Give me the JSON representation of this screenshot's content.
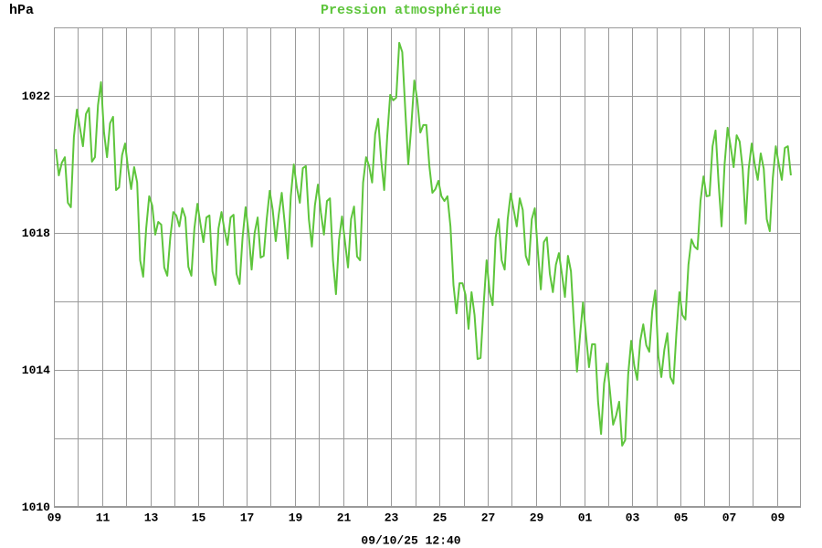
{
  "chart_data": {
    "type": "line",
    "title": "Pression atmosphérique",
    "y_label": "hPa",
    "footer": "09/10/25 12:40",
    "ylim": [
      1010,
      1024
    ],
    "yticks": [
      1010,
      1014,
      1018,
      1022
    ],
    "y_minor_ticks": [
      1012,
      1016,
      1020,
      1024
    ],
    "xlim": [
      0,
      31
    ],
    "xticks": [
      {
        "value": 0,
        "label": "09"
      },
      {
        "value": 2,
        "label": "11"
      },
      {
        "value": 4,
        "label": "13"
      },
      {
        "value": 6,
        "label": "15"
      },
      {
        "value": 8,
        "label": "17"
      },
      {
        "value": 10,
        "label": "19"
      },
      {
        "value": 12,
        "label": "21"
      },
      {
        "value": 14,
        "label": "23"
      },
      {
        "value": 16,
        "label": "25"
      },
      {
        "value": 18,
        "label": "27"
      },
      {
        "value": 20,
        "label": "29"
      },
      {
        "value": 22,
        "label": "01"
      },
      {
        "value": 24,
        "label": "03"
      },
      {
        "value": 26,
        "label": "05"
      },
      {
        "value": 28,
        "label": "07"
      },
      {
        "value": 30,
        "label": "09"
      }
    ],
    "x_minor_ticks": [
      1,
      3,
      5,
      7,
      9,
      11,
      13,
      15,
      17,
      19,
      21,
      23,
      25,
      27,
      29
    ],
    "grid": true,
    "x": [
      0.08,
      0.205,
      0.33,
      0.455,
      0.58,
      0.705,
      0.83,
      0.955,
      1.08,
      1.205,
      1.33,
      1.455,
      1.58,
      1.705,
      1.83,
      1.955,
      2.08,
      2.205,
      2.33,
      2.455,
      2.58,
      2.705,
      2.83,
      2.955,
      3.08,
      3.205,
      3.33,
      3.455,
      3.58,
      3.705,
      3.83,
      3.955,
      4.08,
      4.205,
      4.33,
      4.455,
      4.58,
      4.705,
      4.83,
      4.955,
      5.08,
      5.205,
      5.33,
      5.455,
      5.58,
      5.705,
      5.83,
      5.955,
      6.08,
      6.205,
      6.33,
      6.455,
      6.58,
      6.705,
      6.83,
      6.955,
      7.08,
      7.205,
      7.33,
      7.455,
      7.58,
      7.705,
      7.83,
      7.955,
      8.08,
      8.205,
      8.33,
      8.455,
      8.58,
      8.705,
      8.83,
      8.955,
      9.08,
      9.205,
      9.33,
      9.455,
      9.58,
      9.705,
      9.83,
      9.955,
      10.08,
      10.205,
      10.33,
      10.455,
      10.58,
      10.705,
      10.83,
      10.955,
      11.08,
      11.205,
      11.33,
      11.455,
      11.58,
      11.705,
      11.83,
      11.955,
      12.08,
      12.205,
      12.33,
      12.455,
      12.58,
      12.705,
      12.83,
      12.955,
      13.08,
      13.205,
      13.33,
      13.455,
      13.58,
      13.705,
      13.83,
      13.955,
      14.08,
      14.205,
      14.33,
      14.455,
      14.58,
      14.705,
      14.83,
      14.955,
      15.08,
      15.205,
      15.33,
      15.455,
      15.58,
      15.705,
      15.83,
      15.955,
      16.08,
      16.205,
      16.33,
      16.455,
      16.58,
      16.705,
      16.83,
      16.955,
      17.08,
      17.205,
      17.33,
      17.455,
      17.58,
      17.705,
      17.83,
      17.955,
      18.08,
      18.205,
      18.33,
      18.455,
      18.58,
      18.705,
      18.83,
      18.955,
      19.08,
      19.205,
      19.33,
      19.455,
      19.58,
      19.705,
      19.83,
      19.955,
      20.08,
      20.205,
      20.33,
      20.455,
      20.58,
      20.705,
      20.83,
      20.955,
      21.08,
      21.205,
      21.33,
      21.455,
      21.58,
      21.705,
      21.83,
      21.955,
      22.08,
      22.205,
      22.33,
      22.455,
      22.58,
      22.705,
      22.83,
      22.955,
      23.08,
      23.205,
      23.33,
      23.455,
      23.58,
      23.705,
      23.83,
      23.955,
      24.08,
      24.205,
      24.33,
      24.455,
      24.58,
      24.705,
      24.83,
      24.955,
      25.08,
      25.205,
      25.33,
      25.455,
      25.58,
      25.705,
      25.83,
      25.955,
      26.08,
      26.205,
      26.33,
      26.455,
      26.58,
      26.705,
      26.83,
      26.955,
      27.08,
      27.205,
      27.33,
      27.455,
      27.58,
      27.705,
      27.83,
      27.955,
      28.08,
      28.205,
      28.33,
      28.455,
      28.58,
      28.705,
      28.83,
      28.955,
      29.08,
      29.205,
      29.33,
      29.455,
      29.58,
      29.705,
      29.83,
      29.955,
      30.08,
      30.205,
      30.33,
      30.455,
      30.58
    ],
    "series": [
      {
        "color": "#5ec53c",
        "values": [
          1020.45,
          1019.68,
          1020.05,
          1020.21,
          1018.88,
          1018.75,
          1020.8,
          1021.6,
          1021.07,
          1020.53,
          1021.47,
          1021.65,
          1020.08,
          1020.21,
          1021.73,
          1022.4,
          1020.93,
          1020.21,
          1021.2,
          1021.39,
          1019.25,
          1019.33,
          1020.27,
          1020.61,
          1019.87,
          1019.28,
          1019.92,
          1019.47,
          1017.2,
          1016.72,
          1018.13,
          1019.07,
          1018.8,
          1017.95,
          1018.32,
          1018.24,
          1016.99,
          1016.75,
          1017.87,
          1018.61,
          1018.51,
          1018.19,
          1018.72,
          1018.45,
          1017.01,
          1016.75,
          1018.13,
          1018.85,
          1018.27,
          1017.73,
          1018.45,
          1018.51,
          1016.88,
          1016.48,
          1018.13,
          1018.61,
          1018.08,
          1017.65,
          1018.45,
          1018.53,
          1016.8,
          1016.51,
          1017.87,
          1018.75,
          1018.0,
          1016.93,
          1018.0,
          1018.45,
          1017.28,
          1017.33,
          1018.4,
          1019.23,
          1018.67,
          1017.76,
          1018.53,
          1019.17,
          1018.27,
          1017.25,
          1019.07,
          1020.0,
          1019.33,
          1018.88,
          1019.89,
          1019.95,
          1018.4,
          1017.6,
          1018.8,
          1019.41,
          1018.59,
          1017.95,
          1018.93,
          1019.01,
          1017.2,
          1016.21,
          1017.79,
          1018.48,
          1017.73,
          1016.99,
          1018.4,
          1018.77,
          1017.31,
          1017.2,
          1019.47,
          1020.21,
          1019.95,
          1019.47,
          1020.88,
          1021.33,
          1020.13,
          1019.25,
          1020.8,
          1022.03,
          1021.87,
          1021.95,
          1023.55,
          1023.28,
          1021.6,
          1020.0,
          1021.12,
          1022.45,
          1021.87,
          1020.93,
          1021.15,
          1021.15,
          1019.95,
          1019.17,
          1019.28,
          1019.52,
          1019.07,
          1018.93,
          1019.07,
          1018.19,
          1016.48,
          1015.65,
          1016.53,
          1016.53,
          1016.19,
          1015.2,
          1016.27,
          1015.6,
          1014.32,
          1014.35,
          1015.87,
          1017.2,
          1016.27,
          1015.89,
          1017.87,
          1018.4,
          1017.2,
          1016.93,
          1018.4,
          1019.15,
          1018.67,
          1018.19,
          1019.01,
          1018.67,
          1017.33,
          1017.07,
          1018.4,
          1018.72,
          1017.47,
          1016.35,
          1017.73,
          1017.87,
          1016.8,
          1016.27,
          1017.07,
          1017.41,
          1016.8,
          1016.13,
          1017.33,
          1016.88,
          1015.33,
          1013.95,
          1014.99,
          1015.97,
          1015.01,
          1014.08,
          1014.75,
          1014.75,
          1013.07,
          1012.13,
          1013.6,
          1014.19,
          1013.33,
          1012.4,
          1012.67,
          1013.07,
          1011.79,
          1011.95,
          1013.87,
          1014.85,
          1014.13,
          1013.71,
          1014.85,
          1015.33,
          1014.72,
          1014.53,
          1015.73,
          1016.32,
          1014.4,
          1013.79,
          1014.59,
          1015.07,
          1013.79,
          1013.6,
          1015.07,
          1016.27,
          1015.6,
          1015.47,
          1017.07,
          1017.81,
          1017.6,
          1017.52,
          1018.93,
          1019.65,
          1019.07,
          1019.09,
          1020.53,
          1020.99,
          1019.47,
          1018.19,
          1020.0,
          1021.07,
          1020.53,
          1019.92,
          1020.85,
          1020.67,
          1019.87,
          1018.27,
          1019.87,
          1020.61,
          1020.0,
          1019.55,
          1020.32,
          1019.87,
          1018.4,
          1018.05,
          1019.6,
          1020.53,
          1020.0,
          1019.55,
          1020.48,
          1020.53,
          1019.68
        ]
      }
    ]
  }
}
